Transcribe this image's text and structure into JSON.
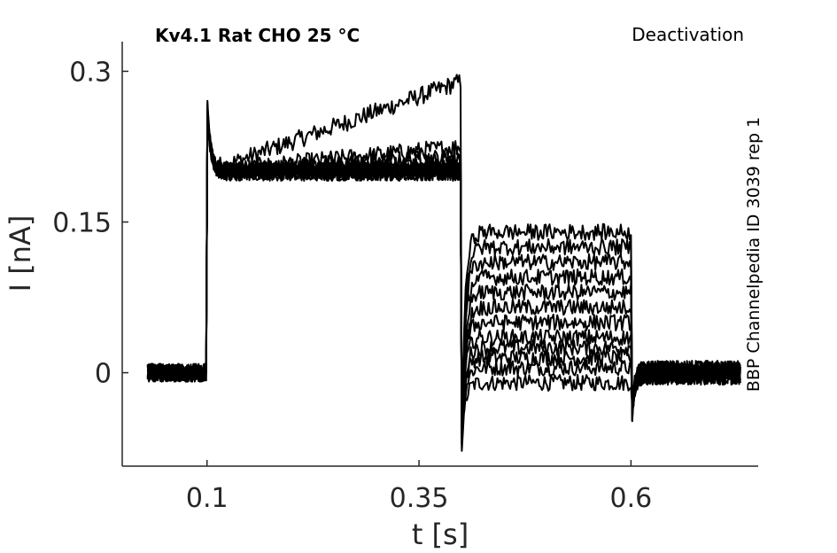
{
  "chart_data": {
    "type": "line",
    "title_left": "Kv4.1  Rat  CHO  25 °C",
    "title_right": "Deactivation",
    "side_label": "BBP Channelpedia ID 3039 rep 1",
    "xlabel": "t [s]",
    "ylabel": "I [nA]",
    "xlim": [
      0.0,
      0.75
    ],
    "ylim": [
      -0.093,
      0.3295
    ],
    "x_ticks": [
      0.1,
      0.35,
      0.6
    ],
    "x_tick_labels": [
      "0.1",
      "0.35",
      "0.6"
    ],
    "y_ticks": [
      0,
      0.15,
      0.3
    ],
    "y_tick_labels": [
      "0",
      "0.15",
      "0.3"
    ],
    "grid": false,
    "color": "#000000",
    "protocol": {
      "t_start": 0.03,
      "t_step_on": 0.1,
      "t_step_off": 0.4,
      "t_tail_off": 0.6,
      "t_end": 0.73
    },
    "series": [
      {
        "baseline": 0.0,
        "peak": 0.28,
        "plateau": 0.2,
        "plateau_end": 0.29,
        "tail": -0.01
      },
      {
        "baseline": 0.0,
        "peak": 0.27,
        "plateau": 0.2,
        "plateau_end": 0.225,
        "tail": 0.005
      },
      {
        "baseline": 0.0,
        "peak": 0.27,
        "plateau": 0.2,
        "plateau_end": 0.215,
        "tail": 0.015
      },
      {
        "baseline": 0.0,
        "peak": 0.27,
        "plateau": 0.2,
        "plateau_end": 0.21,
        "tail": 0.025
      },
      {
        "baseline": 0.0,
        "peak": 0.27,
        "plateau": 0.2,
        "plateau_end": 0.205,
        "tail": 0.035
      },
      {
        "baseline": 0.0,
        "peak": 0.27,
        "plateau": 0.2,
        "plateau_end": 0.2,
        "tail": 0.05
      },
      {
        "baseline": 0.0,
        "peak": 0.27,
        "plateau": 0.2,
        "plateau_end": 0.2,
        "tail": 0.065
      },
      {
        "baseline": 0.0,
        "peak": 0.27,
        "plateau": 0.2,
        "plateau_end": 0.2,
        "tail": 0.08
      },
      {
        "baseline": 0.0,
        "peak": 0.27,
        "plateau": 0.2,
        "plateau_end": 0.2,
        "tail": 0.095
      },
      {
        "baseline": 0.0,
        "peak": 0.27,
        "plateau": 0.2,
        "plateau_end": 0.2,
        "tail": 0.11
      },
      {
        "baseline": 0.0,
        "peak": 0.27,
        "plateau": 0.2,
        "plateau_end": 0.2,
        "tail": 0.125
      },
      {
        "baseline": 0.0,
        "peak": 0.27,
        "plateau": 0.2,
        "plateau_end": 0.2,
        "tail": 0.14
      }
    ]
  }
}
